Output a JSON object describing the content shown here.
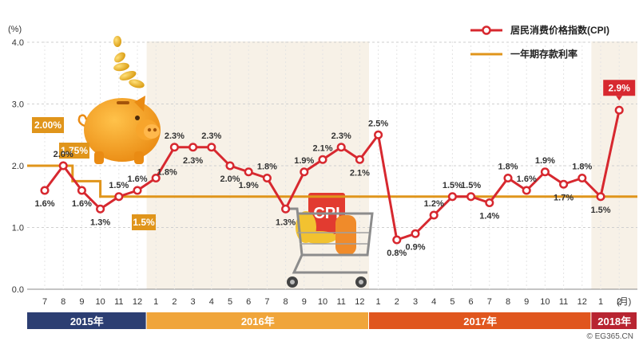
{
  "chart_data": {
    "type": "line",
    "unit_label": "(%)",
    "x_unit_label": "(月)",
    "categories": [
      "7",
      "8",
      "9",
      "10",
      "11",
      "12",
      "1",
      "2",
      "3",
      "4",
      "5",
      "6",
      "7",
      "8",
      "9",
      "10",
      "11",
      "12",
      "1",
      "2",
      "3",
      "4",
      "5",
      "6",
      "7",
      "8",
      "9",
      "10",
      "11",
      "12",
      "1",
      "2"
    ],
    "ylim": [
      0,
      4
    ],
    "yticks": [
      "0.0",
      "1.0",
      "2.0",
      "3.0",
      "4.0"
    ],
    "series": [
      {
        "name": "居民消费价格指数(CPI)",
        "color": "#d7282f",
        "values": [
          1.6,
          2.0,
          1.6,
          1.3,
          1.5,
          1.6,
          1.8,
          2.3,
          2.3,
          2.3,
          2.0,
          1.9,
          1.8,
          1.3,
          1.9,
          2.1,
          2.3,
          2.1,
          2.5,
          0.8,
          0.9,
          1.2,
          1.5,
          1.5,
          1.4,
          1.8,
          1.6,
          1.9,
          1.7,
          1.8,
          1.5,
          2.9
        ],
        "labels": [
          "1.6%",
          "2.0%",
          "1.6%",
          "1.3%",
          "1.5%",
          "1.6%",
          "1.8%",
          "2.3%",
          "2.3%",
          "2.3%",
          "2.0%",
          "1.9%",
          "1.8%",
          "1.3%",
          "1.9%",
          "2.1%",
          "2.3%",
          "2.1%",
          "2.5%",
          "0.8%",
          "0.9%",
          "1.2%",
          "1.5%",
          "1.5%",
          "1.4%",
          "1.8%",
          "1.6%",
          "1.9%",
          "1.7%",
          "1.8%",
          "1.5%",
          "2.9%"
        ]
      },
      {
        "name": "一年期存款利率",
        "color": "#e0951b",
        "steps": [
          {
            "from": -0.5,
            "to": 1.5,
            "value": 2.0
          },
          {
            "from": 1.5,
            "to": 3.0,
            "value": 1.75
          },
          {
            "from": 3.0,
            "to": 31.5,
            "value": 1.5
          }
        ],
        "badges": [
          "2.00%",
          "1.75%",
          "1.5%"
        ]
      }
    ],
    "years": [
      {
        "label": "2015年",
        "color": "#2c3e72",
        "start": 0,
        "end": 5
      },
      {
        "label": "2016年",
        "color": "#f0a53a",
        "start": 6,
        "end": 17
      },
      {
        "label": "2017年",
        "color": "#e0561e",
        "start": 18,
        "end": 29
      },
      {
        "label": "2018年",
        "color": "#b82431",
        "start": 30,
        "end": 31
      }
    ],
    "grid": "horizontal dashed",
    "legend": "top-right"
  },
  "credit": "© EG365.CN"
}
